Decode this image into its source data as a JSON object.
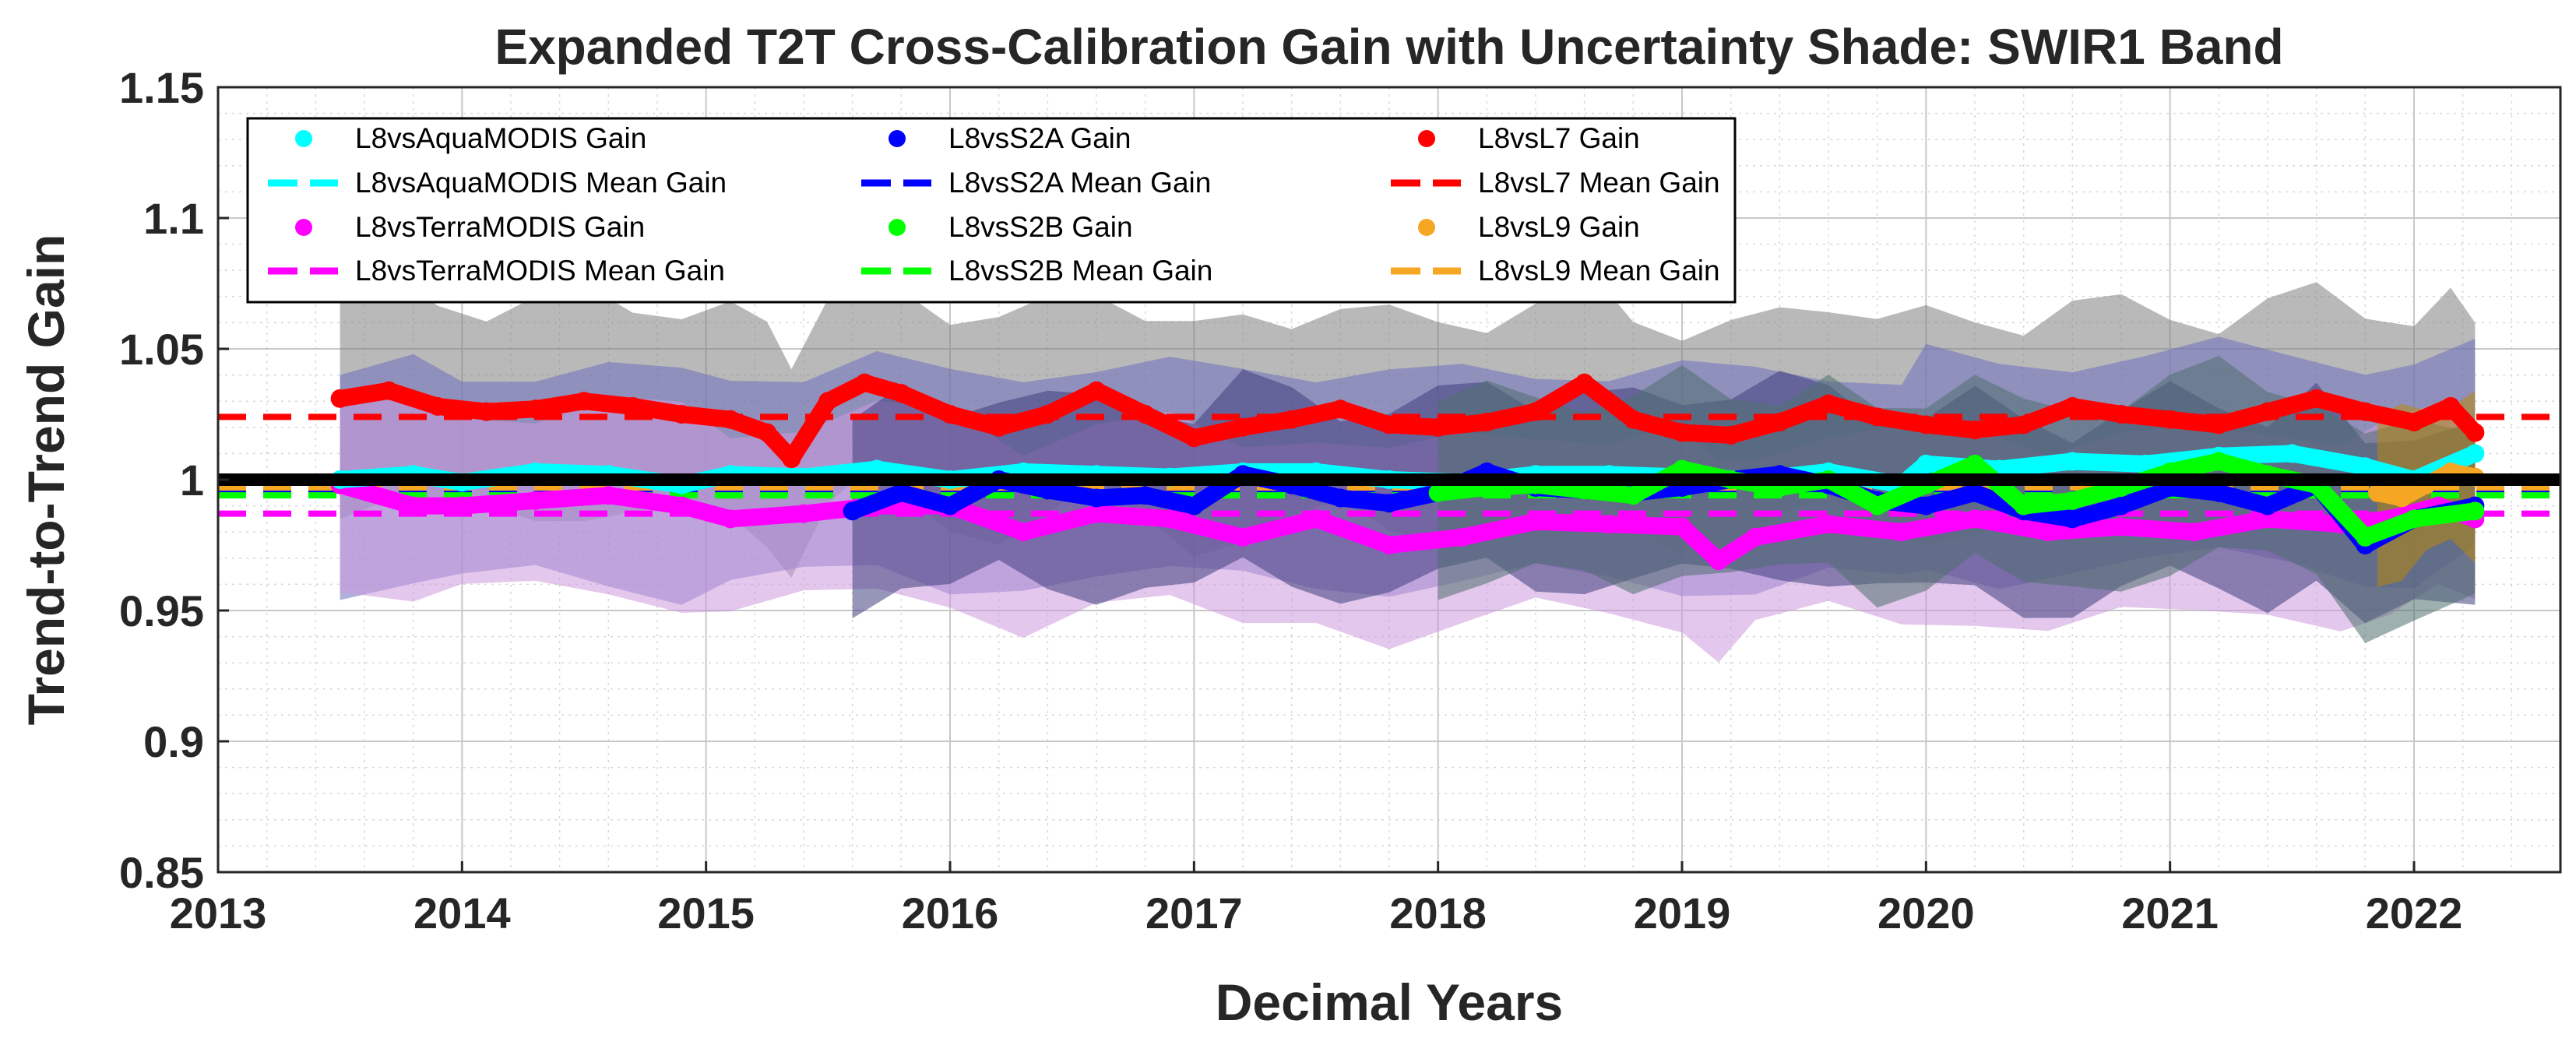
{
  "chart_data": {
    "type": "line",
    "title": "Expanded T2T Cross-Calibration Gain with Uncertainty Shade: SWIR1 Band",
    "xlabel": "Decimal Years",
    "ylabel": "Trend-to-Trend Gain",
    "xlim": [
      2013,
      2022.6
    ],
    "ylim": [
      0.85,
      1.15
    ],
    "xticks": [
      2013,
      2014,
      2015,
      2016,
      2017,
      2018,
      2019,
      2020,
      2021,
      2022
    ],
    "yticks": [
      0.85,
      0.9,
      0.95,
      1,
      1.05,
      1.1,
      1.15
    ],
    "ytick_labels": [
      "0.85",
      "0.9",
      "0.95",
      "1",
      "1.05",
      "1.1",
      "1.15"
    ],
    "grid": true,
    "minor_grid": true,
    "legend_position": "top-left",
    "reference_line": 1.0,
    "series": [
      {
        "name": "L8vsL7",
        "color": "#ff0000",
        "band_color": "#808080",
        "mean": 1.024,
        "x": [
          2013.5,
          2013.7,
          2013.9,
          2014.1,
          2014.3,
          2014.5,
          2014.7,
          2014.9,
          2015.1,
          2015.25,
          2015.35,
          2015.5,
          2015.65,
          2015.8,
          2016.0,
          2016.2,
          2016.4,
          2016.6,
          2016.8,
          2017.0,
          2017.2,
          2017.4,
          2017.6,
          2017.8,
          2018.0,
          2018.2,
          2018.4,
          2018.6,
          2018.8,
          2019.0,
          2019.2,
          2019.4,
          2019.6,
          2019.8,
          2020.0,
          2020.2,
          2020.4,
          2020.6,
          2020.8,
          2021.0,
          2021.2,
          2021.4,
          2021.6,
          2021.8,
          2022.0,
          2022.15,
          2022.25
        ],
        "values": [
          1.031,
          1.034,
          1.028,
          1.026,
          1.027,
          1.03,
          1.028,
          1.025,
          1.023,
          1.018,
          1.008,
          1.03,
          1.037,
          1.033,
          1.025,
          1.02,
          1.025,
          1.034,
          1.025,
          1.016,
          1.02,
          1.023,
          1.027,
          1.021,
          1.02,
          1.022,
          1.026,
          1.037,
          1.023,
          1.018,
          1.017,
          1.022,
          1.029,
          1.024,
          1.021,
          1.019,
          1.021,
          1.028,
          1.025,
          1.023,
          1.021,
          1.026,
          1.031,
          1.026,
          1.022,
          1.028,
          1.018
        ],
        "uncertainty": 0.04
      },
      {
        "name": "L8vsAquaMODIS",
        "color": "#00ffff",
        "band_color": "#7070c0",
        "mean": 0.998,
        "x": [
          2013.5,
          2013.8,
          2014.0,
          2014.3,
          2014.6,
          2014.9,
          2015.1,
          2015.4,
          2015.7,
          2016.0,
          2016.3,
          2016.6,
          2016.9,
          2017.2,
          2017.5,
          2017.8,
          2018.1,
          2018.4,
          2018.7,
          2019.0,
          2019.3,
          2019.6,
          2019.9,
          2020.0,
          2020.3,
          2020.6,
          2020.9,
          2021.2,
          2021.5,
          2021.8,
          2022.0,
          2022.25
        ],
        "values": [
          1.0,
          1.002,
          0.999,
          1.003,
          1.002,
          0.998,
          1.002,
          1.001,
          1.004,
          1.0,
          1.003,
          1.002,
          1.001,
          1.003,
          1.003,
          1.0,
          0.999,
          1.002,
          1.002,
          1.001,
          1.0,
          1.003,
          0.998,
          1.006,
          1.004,
          1.007,
          1.006,
          1.009,
          1.01,
          1.005,
          1.0,
          1.01
        ],
        "uncertainty": 0.04
      },
      {
        "name": "L8vsTerraMODIS",
        "color": "#ff00ff",
        "band_color": "#cc99dd",
        "mean": 0.987,
        "x": [
          2013.5,
          2013.8,
          2014.0,
          2014.3,
          2014.6,
          2014.9,
          2015.1,
          2015.4,
          2015.7,
          2016.0,
          2016.3,
          2016.6,
          2016.9,
          2017.2,
          2017.5,
          2017.8,
          2018.1,
          2018.4,
          2018.7,
          2019.0,
          2019.15,
          2019.3,
          2019.6,
          2019.9,
          2020.2,
          2020.5,
          2020.8,
          2021.1,
          2021.4,
          2021.7,
          2021.9,
          2022.1,
          2022.25
        ],
        "values": [
          0.998,
          0.99,
          0.99,
          0.992,
          0.994,
          0.99,
          0.985,
          0.987,
          0.99,
          0.99,
          0.98,
          0.987,
          0.985,
          0.978,
          0.985,
          0.975,
          0.978,
          0.984,
          0.983,
          0.982,
          0.969,
          0.978,
          0.983,
          0.98,
          0.985,
          0.98,
          0.982,
          0.98,
          0.985,
          0.983,
          0.985,
          0.99,
          0.985
        ],
        "uncertainty": 0.035
      },
      {
        "name": "L8vsS2A",
        "color": "#0000ff",
        "band_color": "#404080",
        "mean": 0.996,
        "x": [
          2015.6,
          2015.8,
          2016.0,
          2016.2,
          2016.4,
          2016.6,
          2016.8,
          2017.0,
          2017.2,
          2017.4,
          2017.6,
          2017.8,
          2018.0,
          2018.2,
          2018.4,
          2018.6,
          2018.8,
          2019.0,
          2019.2,
          2019.4,
          2019.6,
          2019.8,
          2020.0,
          2020.2,
          2020.4,
          2020.6,
          2020.8,
          2021.0,
          2021.2,
          2021.4,
          2021.6,
          2021.8,
          2022.0,
          2022.25
        ],
        "values": [
          0.988,
          0.995,
          0.99,
          1.0,
          0.996,
          0.993,
          0.994,
          0.99,
          1.002,
          0.998,
          0.993,
          0.991,
          0.995,
          1.003,
          0.997,
          0.996,
          0.995,
          0.997,
          1.0,
          1.002,
          0.998,
          0.992,
          0.99,
          0.995,
          0.988,
          0.985,
          0.99,
          0.997,
          0.995,
          0.99,
          0.998,
          0.975,
          0.985,
          0.99
        ],
        "uncertainty": 0.035
      },
      {
        "name": "L8vsS2B",
        "color": "#00ff00",
        "band_color": "#507070",
        "mean": 0.994,
        "x": [
          2018.0,
          2018.2,
          2018.4,
          2018.6,
          2018.8,
          2019.0,
          2019.2,
          2019.4,
          2019.6,
          2019.8,
          2020.0,
          2020.2,
          2020.4,
          2020.6,
          2020.8,
          2021.0,
          2021.2,
          2021.4,
          2021.6,
          2021.8,
          2022.0,
          2022.25
        ],
        "values": [
          0.995,
          0.997,
          0.998,
          0.996,
          0.994,
          1.004,
          1.0,
          0.997,
          1.0,
          0.99,
          0.998,
          1.006,
          0.99,
          0.992,
          0.997,
          1.003,
          1.007,
          1.002,
          0.998,
          0.978,
          0.985,
          0.988
        ],
        "uncertainty": 0.035
      },
      {
        "name": "L8vsL9",
        "color": "#f5a623",
        "band_color": "#b8860b",
        "mean": 0.997,
        "x": [
          2021.85,
          2021.95,
          2022.05,
          2022.15,
          2022.25
        ],
        "values": [
          0.995,
          0.993,
          0.998,
          1.003,
          1.001
        ],
        "uncertainty": 0.03
      }
    ],
    "legend": {
      "columns": [
        [
          "L8vsAquaMODIS Gain",
          "L8vsAquaMODIS Mean Gain",
          "L8vsTerraMODIS Gain",
          "L8vsTerraMODIS Mean Gain"
        ],
        [
          "L8vsS2A Gain",
          "L8vsS2A Mean Gain",
          "L8vsS2B Gain",
          "L8vsS2B Mean Gain"
        ],
        [
          "L8vsL7 Gain",
          "L8vsL7 Mean Gain",
          "L8vsL9 Gain",
          "L8vsL9 Mean Gain"
        ]
      ],
      "colors": [
        [
          "#00ffff",
          "#00ffff",
          "#ff00ff",
          "#ff00ff"
        ],
        [
          "#0000ff",
          "#0000ff",
          "#00ff00",
          "#00ff00"
        ],
        [
          "#ff0000",
          "#ff0000",
          "#f5a623",
          "#f5a623"
        ]
      ],
      "kinds": [
        "dot",
        "dash",
        "dot",
        "dash"
      ]
    }
  }
}
